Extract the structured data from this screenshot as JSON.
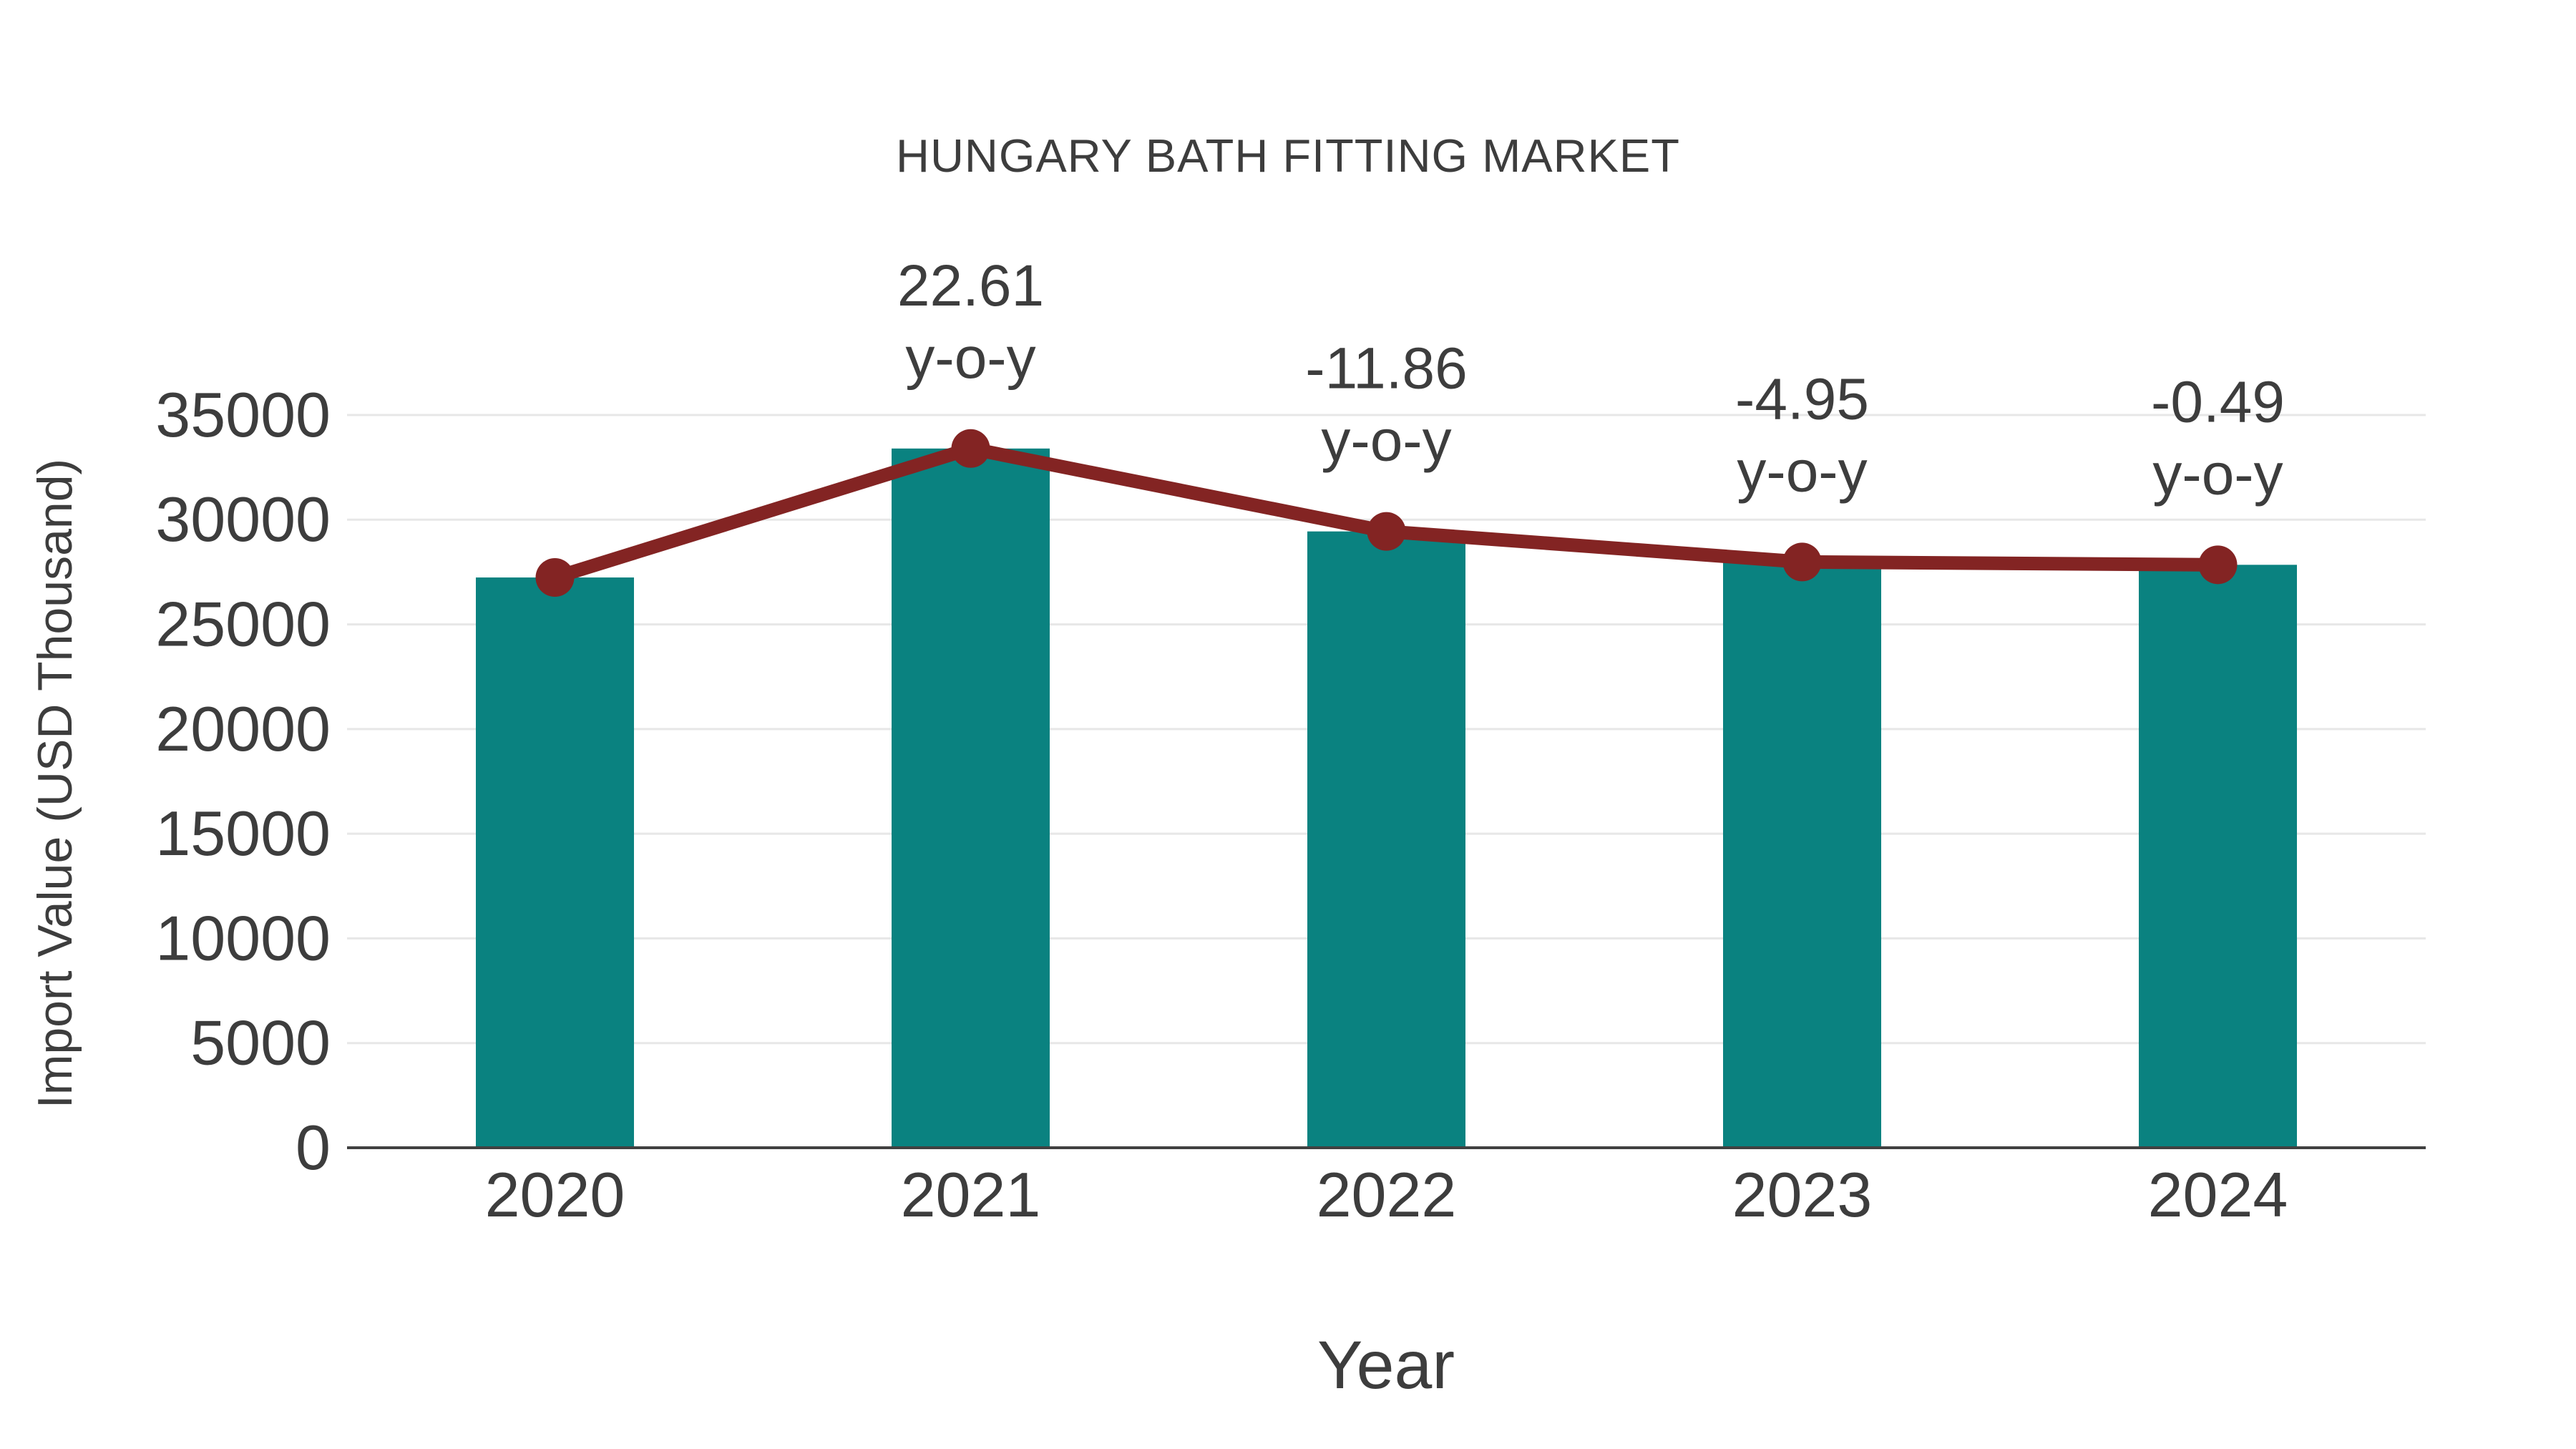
{
  "chart_data": {
    "type": "bar+line",
    "title": "HUNGARY BATH FITTING MARKET",
    "xlabel": "Year",
    "ylabel": "Import Value (USD Thousand)",
    "categories": [
      "2020",
      "2021",
      "2022",
      "2023",
      "2024"
    ],
    "series": [
      {
        "name": "import-value-bars",
        "type": "bar",
        "color": "#0a8280",
        "values": [
          27240,
          33400,
          29440,
          27980,
          27845
        ]
      },
      {
        "name": "import-value-trend",
        "type": "line",
        "color": "#832423",
        "values": [
          27240,
          33400,
          29440,
          27980,
          27845
        ]
      }
    ],
    "annotations": [
      {
        "category": "2021",
        "value_label": "22.61",
        "sub_label": "y-o-y"
      },
      {
        "category": "2022",
        "value_label": "-11.86",
        "sub_label": "y-o-y"
      },
      {
        "category": "2023",
        "value_label": "-4.95",
        "sub_label": "y-o-y"
      },
      {
        "category": "2024",
        "value_label": "-0.49",
        "sub_label": "y-o-y"
      }
    ],
    "yticks": [
      0,
      5000,
      10000,
      15000,
      20000,
      25000,
      30000,
      35000
    ],
    "ylim": [
      0,
      38500
    ],
    "grid": true,
    "legend_position": "none",
    "colors": {
      "bar": "#0a8280",
      "line": "#832423",
      "marker": "#832423",
      "text": "#3d3d3d",
      "grid": "#e7e7e7",
      "axis": "#414141",
      "background": "#ffffff"
    }
  }
}
